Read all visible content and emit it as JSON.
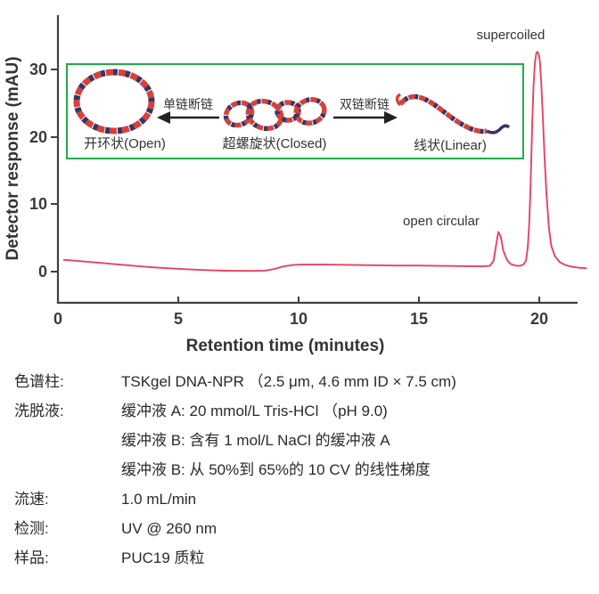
{
  "figure": {
    "y_axis_title": "Detector response (mAU)",
    "x_axis_title": "Retention time (minutes)",
    "annotation_supercoiled": "supercoiled",
    "annotation_open_circular": "open circular"
  },
  "inset": {
    "open_label": "开环状(Open)",
    "closed_label": "超螺旋状(Closed)",
    "linear_label": "线状(Linear)",
    "single_strand_break_label": "单链断链",
    "double_strand_break_label": "双链断链"
  },
  "colors": {
    "trace": "#e8425f",
    "inset_border": "#22ab4a",
    "axis": "#404040",
    "dna_red": "#d8403a",
    "dna_navy": "#333666"
  },
  "chart_data": {
    "type": "line",
    "title": "",
    "xlabel": "Retention time (minutes)",
    "ylabel": "Detector response (mAU)",
    "xlim": [
      0,
      22
    ],
    "ylim": [
      0,
      38
    ],
    "x_ticks": [
      0,
      5,
      10,
      15,
      20
    ],
    "y_ticks": [
      0,
      10,
      20,
      30
    ],
    "grid": false,
    "legend": "none",
    "series": [
      {
        "name": "UV @ 260 nm detector trace",
        "color": "#e8425f",
        "points": [
          [
            0.25,
            1.75
          ],
          [
            0.8,
            1.6
          ],
          [
            1.6,
            1.35
          ],
          [
            2.4,
            1.1
          ],
          [
            3.2,
            0.85
          ],
          [
            4.0,
            0.62
          ],
          [
            4.8,
            0.45
          ],
          [
            5.6,
            0.3
          ],
          [
            6.4,
            0.18
          ],
          [
            7.2,
            0.12
          ],
          [
            8.0,
            0.1
          ],
          [
            8.6,
            0.15
          ],
          [
            9.0,
            0.4
          ],
          [
            9.4,
            0.8
          ],
          [
            9.8,
            1.0
          ],
          [
            10.2,
            1.05
          ],
          [
            11.0,
            1.05
          ],
          [
            12.0,
            1.0
          ],
          [
            13.0,
            0.95
          ],
          [
            14.0,
            0.9
          ],
          [
            15.0,
            0.9
          ],
          [
            16.0,
            0.85
          ],
          [
            17.0,
            0.8
          ],
          [
            17.6,
            0.78
          ],
          [
            17.95,
            0.85
          ],
          [
            18.1,
            1.6
          ],
          [
            18.2,
            3.8
          ],
          [
            18.3,
            5.9
          ],
          [
            18.4,
            5.2
          ],
          [
            18.5,
            3.2
          ],
          [
            18.65,
            1.8
          ],
          [
            18.8,
            1.15
          ],
          [
            19.0,
            0.9
          ],
          [
            19.2,
            0.85
          ],
          [
            19.35,
            1.1
          ],
          [
            19.45,
            1.6
          ],
          [
            19.52,
            3.5
          ],
          [
            19.58,
            7.0
          ],
          [
            19.64,
            13.0
          ],
          [
            19.7,
            21.0
          ],
          [
            19.76,
            27.5
          ],
          [
            19.82,
            31.0
          ],
          [
            19.88,
            32.5
          ],
          [
            19.93,
            32.6
          ],
          [
            19.98,
            32.2
          ],
          [
            20.03,
            31.0
          ],
          [
            20.08,
            28.0
          ],
          [
            20.15,
            23.0
          ],
          [
            20.22,
            17.0
          ],
          [
            20.3,
            11.5
          ],
          [
            20.4,
            6.5
          ],
          [
            20.5,
            3.8
          ],
          [
            20.65,
            2.3
          ],
          [
            20.85,
            1.4
          ],
          [
            21.1,
            0.95
          ],
          [
            21.4,
            0.7
          ],
          [
            21.7,
            0.55
          ],
          [
            21.95,
            0.5
          ]
        ]
      }
    ],
    "peaks": [
      {
        "name": "open circular",
        "retention_min": 18.3,
        "height_mAU": 5.9
      },
      {
        "name": "supercoiled",
        "retention_min": 19.9,
        "height_mAU": 32.6
      }
    ]
  },
  "specs": {
    "rows": [
      {
        "label": "色谱柱:",
        "value": "TSKgel DNA-NPR （2.5 μm, 4.6 mm ID × 7.5 cm)"
      },
      {
        "label": "洗脱液:",
        "value": "缓冲液 A:  20 mmol/L Tris-HCl （pH 9.0)"
      },
      {
        "label": "",
        "value": "缓冲液 B:  含有 1 mol/L NaCl 的缓冲液 A"
      },
      {
        "label": "",
        "value": "缓冲液 B:  从 50%到 65%的 10 CV 的线性梯度"
      },
      {
        "label": "流速:",
        "value": "1.0 mL/min"
      },
      {
        "label": "检测:",
        "value": "UV @ 260 nm"
      },
      {
        "label": "样品:",
        "value": "PUC19  质粒"
      }
    ]
  }
}
